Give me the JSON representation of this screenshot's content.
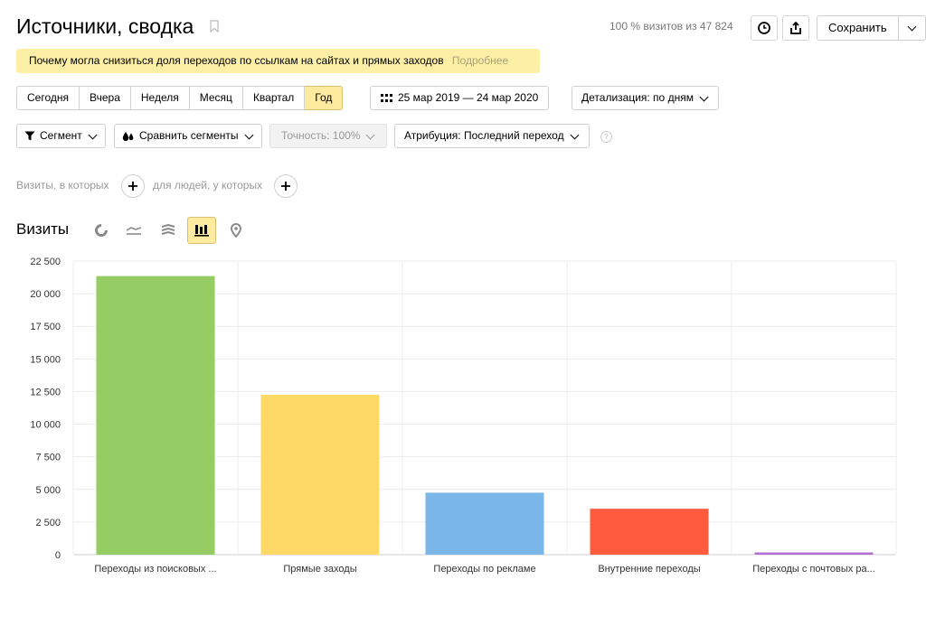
{
  "header": {
    "title": "Источники, сводка",
    "visits_info": "100 % визитов из 47 824",
    "save_label": "Сохранить"
  },
  "banner": {
    "text": "Почему могла снизиться доля переходов по ссылкам на сайтах и прямых заходов",
    "more_label": "Подробнее"
  },
  "periods": [
    {
      "label": "Сегодня",
      "active": false
    },
    {
      "label": "Вчера",
      "active": false
    },
    {
      "label": "Неделя",
      "active": false
    },
    {
      "label": "Месяц",
      "active": false
    },
    {
      "label": "Квартал",
      "active": false
    },
    {
      "label": "Год",
      "active": true
    }
  ],
  "date_range": "25 мар 2019 — 24 мар 2020",
  "detail_label": "Детализация: по дням",
  "segment_label": "Сегмент",
  "compare_label": "Сравнить сегменты",
  "accuracy_label": "Точность: 100%",
  "attribution_label": "Атрибуция: Последний переход",
  "help_glyph": "?",
  "filters": {
    "visits_label": "Визиты, в которых",
    "people_label": "для людей, у которых"
  },
  "chart_title": "Визиты",
  "chart_data": {
    "type": "bar",
    "categories": [
      "Переходы из поисковых ...",
      "Прямые заходы",
      "Переходы по рекламе",
      "Внутренние переходы",
      "Переходы с почтовых ра..."
    ],
    "values": [
      21350,
      12250,
      4750,
      3520,
      170
    ],
    "colors": [
      "#95cc64",
      "#ffd966",
      "#7ab6e8",
      "#ff5b3f",
      "#b46dd1"
    ],
    "yticks": [
      0,
      2500,
      5000,
      7500,
      10000,
      12500,
      15000,
      17500,
      20000,
      22500
    ],
    "ytick_labels": [
      "0",
      "2 500",
      "5 000",
      "7 500",
      "10 000",
      "12 500",
      "15 000",
      "17 500",
      "20 000",
      "22 500"
    ],
    "ylim": [
      0,
      22500
    ],
    "grid": true
  }
}
